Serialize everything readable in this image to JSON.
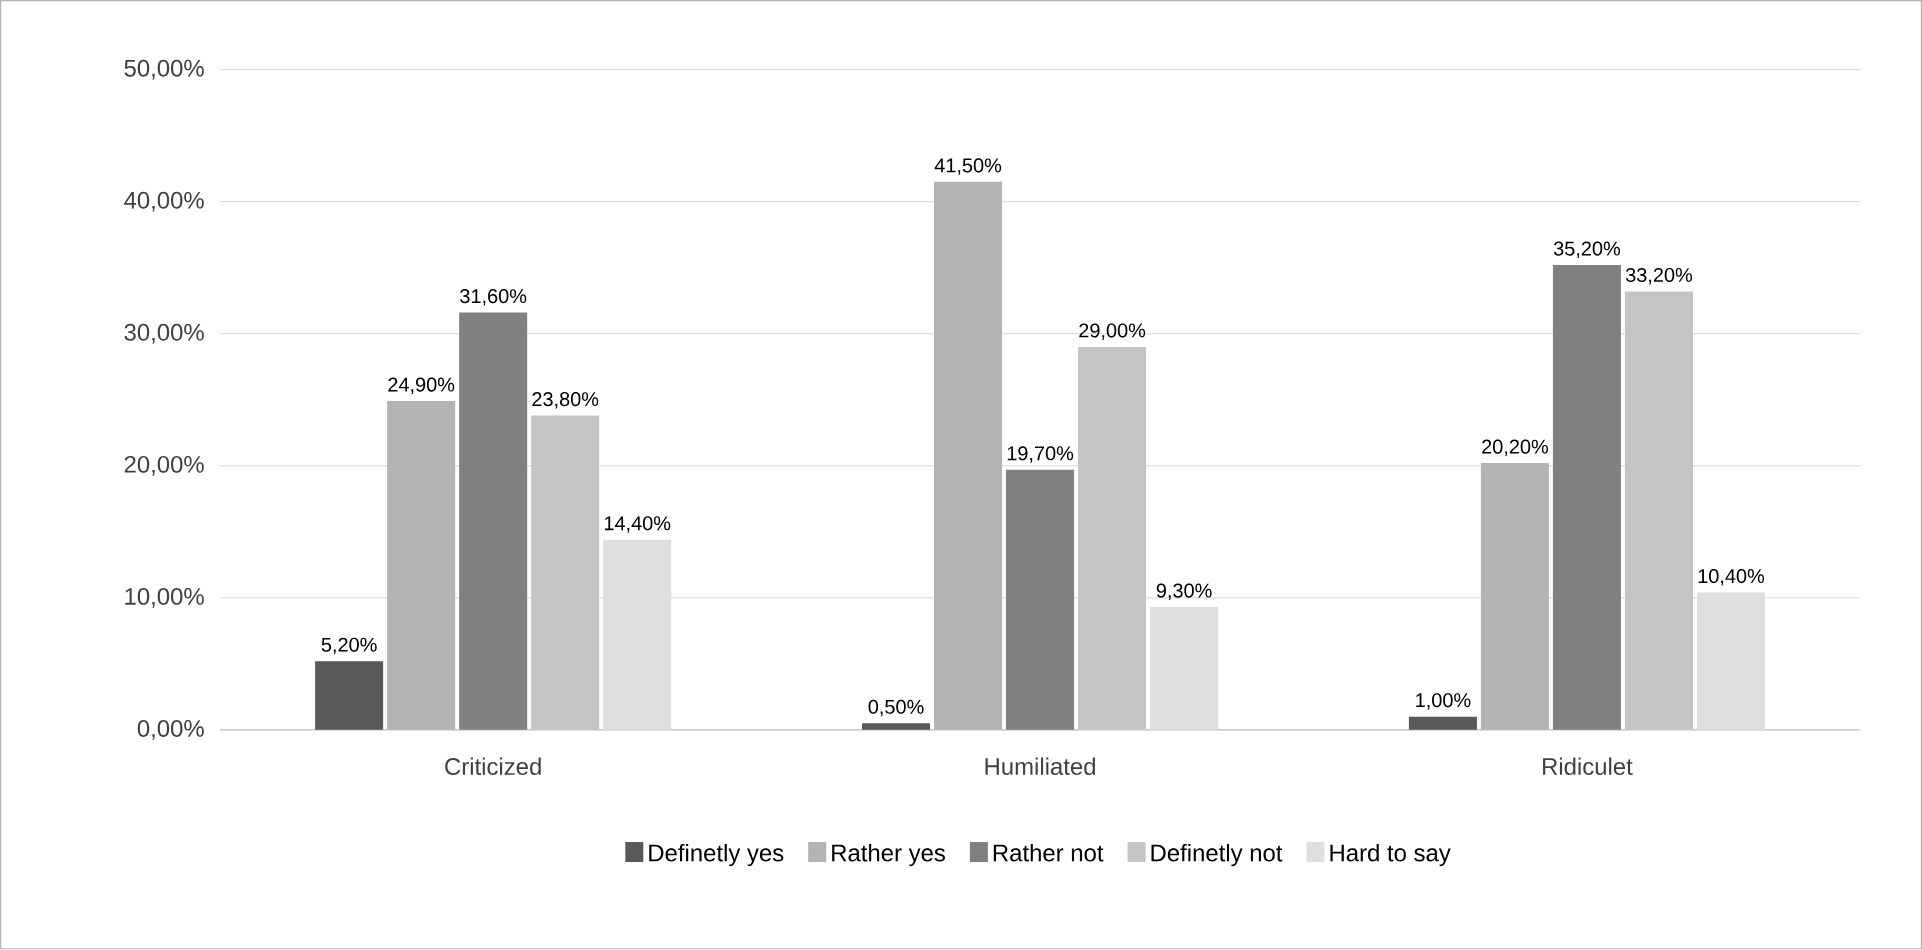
{
  "chart_data": {
    "type": "bar",
    "categories": [
      "Criticized",
      "Humiliated",
      "Ridiculet"
    ],
    "series": [
      {
        "name": "Definetly yes",
        "color": "#595959",
        "values": [
          5.2,
          0.5,
          1.0
        ],
        "value_labels": [
          "5,20%",
          "0,50%",
          "1,00%"
        ]
      },
      {
        "name": "Rather yes",
        "color": "#b3b3b3",
        "values": [
          24.9,
          41.5,
          20.2
        ],
        "value_labels": [
          "24,90%",
          "41,50%",
          "20,20%"
        ]
      },
      {
        "name": "Rather not",
        "color": "#808080",
        "values": [
          31.6,
          19.7,
          35.2
        ],
        "value_labels": [
          "31,60%",
          "19,70%",
          "35,20%"
        ]
      },
      {
        "name": "Definetly not",
        "color": "#c4c4c4",
        "values": [
          23.8,
          29.0,
          33.2
        ],
        "value_labels": [
          "23,80%",
          "29,00%",
          "33,20%"
        ]
      },
      {
        "name": "Hard to say",
        "color": "#dedede",
        "values": [
          14.4,
          9.3,
          10.4
        ],
        "value_labels": [
          "14,40%",
          "9,30%",
          "10,40%"
        ]
      }
    ],
    "ylim": [
      0,
      50
    ],
    "yticks": [
      {
        "value": 0,
        "label": "0,00%"
      },
      {
        "value": 10,
        "label": "10,00%"
      },
      {
        "value": 20,
        "label": "20,00%"
      },
      {
        "value": 30,
        "label": "30,00%"
      },
      {
        "value": 40,
        "label": "40,00%"
      },
      {
        "value": 50,
        "label": "50,00%"
      }
    ],
    "grid": "y",
    "legend": "bottom"
  }
}
